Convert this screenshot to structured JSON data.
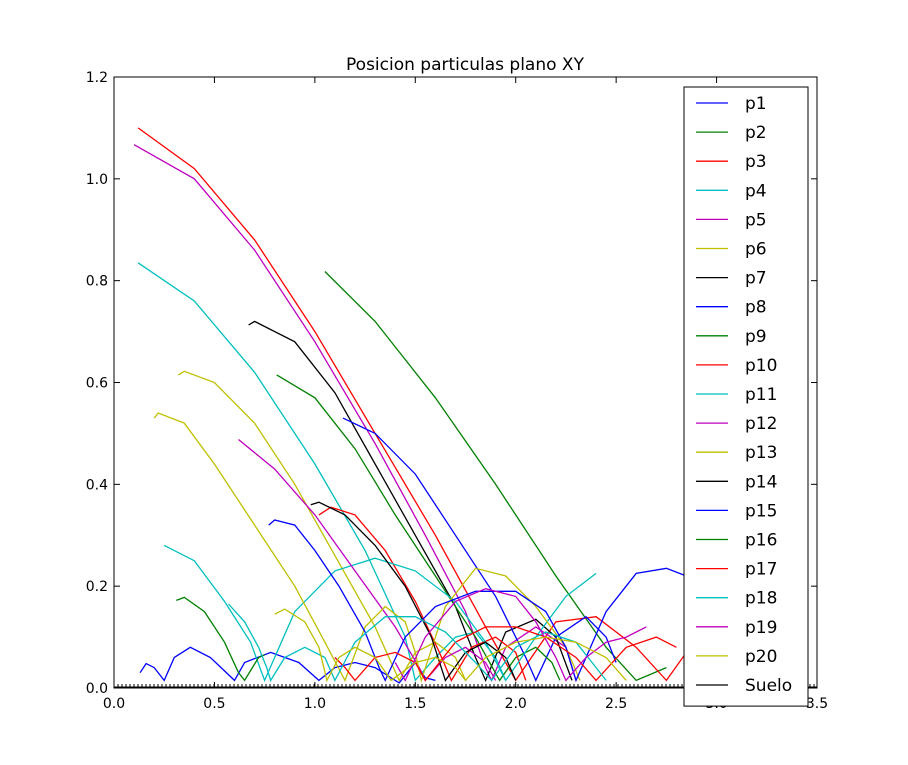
{
  "chart_data": {
    "type": "line",
    "title": "Posicion particulas plano XY",
    "xlabel": "",
    "ylabel": "",
    "xlim": [
      0.0,
      3.5
    ],
    "ylim": [
      0.0,
      1.2
    ],
    "xticks": [
      "0.0",
      "0.5",
      "1.0",
      "1.5",
      "2.0",
      "2.5",
      "3.0",
      "3.5"
    ],
    "yticks": [
      "0.0",
      "0.2",
      "0.4",
      "0.6",
      "0.8",
      "1.0",
      "1.2"
    ],
    "grid": false,
    "legend_position": "upper-right",
    "series": [
      {
        "name": "p1",
        "color": "#0000ff",
        "points": [
          [
            0.13,
            0.03
          ],
          [
            0.16,
            0.048
          ],
          [
            0.2,
            0.04
          ],
          [
            0.25,
            0.015
          ],
          [
            0.3,
            0.06
          ],
          [
            0.38,
            0.08
          ],
          [
            0.48,
            0.06
          ],
          [
            0.6,
            0.015
          ],
          [
            0.65,
            0.05
          ],
          [
            0.78,
            0.07
          ],
          [
            0.92,
            0.05
          ],
          [
            1.02,
            0.015
          ],
          [
            1.1,
            0.04
          ],
          [
            1.2,
            0.05
          ],
          [
            1.3,
            0.04
          ],
          [
            1.42,
            0.01
          ],
          [
            1.5,
            0.05
          ],
          [
            1.55,
            0.02
          ],
          [
            1.6,
            0.015
          ]
        ]
      },
      {
        "name": "p2",
        "color": "#008000",
        "points": [
          [
            1.05,
            0.818
          ],
          [
            1.3,
            0.72
          ],
          [
            1.6,
            0.57
          ],
          [
            1.9,
            0.4
          ],
          [
            2.2,
            0.22
          ],
          [
            2.45,
            0.08
          ],
          [
            2.6,
            0.015
          ],
          [
            2.75,
            0.04
          ]
        ]
      },
      {
        "name": "p3",
        "color": "#ff0000",
        "points": [
          [
            0.12,
            1.1
          ],
          [
            0.4,
            1.02
          ],
          [
            0.7,
            0.88
          ],
          [
            1.0,
            0.7
          ],
          [
            1.3,
            0.5
          ],
          [
            1.6,
            0.3
          ],
          [
            1.85,
            0.12
          ],
          [
            2.0,
            0.015
          ],
          [
            2.2,
            0.13
          ],
          [
            2.4,
            0.14
          ],
          [
            2.6,
            0.08
          ],
          [
            2.75,
            0.015
          ],
          [
            2.85,
            0.07
          ]
        ]
      },
      {
        "name": "p4",
        "color": "#00bfbf",
        "points": [
          [
            0.12,
            0.835
          ],
          [
            0.4,
            0.76
          ],
          [
            0.7,
            0.62
          ],
          [
            1.0,
            0.44
          ],
          [
            1.25,
            0.27
          ],
          [
            1.45,
            0.1
          ],
          [
            1.5,
            0.015
          ],
          [
            1.6,
            0.06
          ],
          [
            1.7,
            0.1
          ],
          [
            1.8,
            0.11
          ],
          [
            1.9,
            0.06
          ],
          [
            1.95,
            0.015
          ]
        ]
      },
      {
        "name": "p5",
        "color": "#bf00bf",
        "points": [
          [
            0.1,
            1.067
          ],
          [
            0.4,
            1.0
          ],
          [
            0.7,
            0.86
          ],
          [
            1.0,
            0.68
          ],
          [
            1.3,
            0.48
          ],
          [
            1.55,
            0.3
          ],
          [
            1.75,
            0.15
          ],
          [
            1.85,
            0.04
          ],
          [
            1.88,
            0.015
          ],
          [
            1.95,
            0.08
          ],
          [
            2.1,
            0.12
          ],
          [
            2.25,
            0.08
          ],
          [
            2.3,
            0.015
          ]
        ]
      },
      {
        "name": "p6",
        "color": "#bfbf00",
        "points": [
          [
            0.32,
            0.615
          ],
          [
            0.35,
            0.622
          ],
          [
            0.5,
            0.6
          ],
          [
            0.7,
            0.52
          ],
          [
            0.9,
            0.4
          ],
          [
            1.1,
            0.26
          ],
          [
            1.3,
            0.12
          ],
          [
            1.42,
            0.015
          ],
          [
            1.5,
            0.07
          ],
          [
            1.6,
            0.09
          ],
          [
            1.7,
            0.06
          ],
          [
            1.75,
            0.015
          ]
        ]
      },
      {
        "name": "p7",
        "color": "#000000",
        "points": [
          [
            0.67,
            0.713
          ],
          [
            0.7,
            0.72
          ],
          [
            0.9,
            0.68
          ],
          [
            1.1,
            0.58
          ],
          [
            1.3,
            0.44
          ],
          [
            1.5,
            0.3
          ],
          [
            1.7,
            0.16
          ],
          [
            1.8,
            0.06
          ],
          [
            1.85,
            0.015
          ],
          [
            1.95,
            0.11
          ],
          [
            2.1,
            0.135
          ],
          [
            2.2,
            0.1
          ],
          [
            2.28,
            0.015
          ]
        ]
      },
      {
        "name": "p8",
        "color": "#0000ff",
        "points": [
          [
            1.14,
            0.53
          ],
          [
            1.3,
            0.5
          ],
          [
            1.5,
            0.42
          ],
          [
            1.7,
            0.3
          ],
          [
            1.9,
            0.18
          ],
          [
            2.05,
            0.06
          ],
          [
            2.1,
            0.015
          ],
          [
            2.2,
            0.1
          ],
          [
            2.35,
            0.14
          ],
          [
            2.45,
            0.1
          ],
          [
            2.5,
            0.05
          ]
        ]
      },
      {
        "name": "p9",
        "color": "#008000",
        "points": [
          [
            0.81,
            0.615
          ],
          [
            1.0,
            0.57
          ],
          [
            1.2,
            0.47
          ],
          [
            1.4,
            0.34
          ],
          [
            1.6,
            0.22
          ],
          [
            1.8,
            0.1
          ],
          [
            1.92,
            0.015
          ],
          [
            2.0,
            0.06
          ],
          [
            2.1,
            0.08
          ],
          [
            2.18,
            0.05
          ],
          [
            2.22,
            0.015
          ]
        ]
      },
      {
        "name": "p10",
        "color": "#ff0000",
        "points": [
          [
            1.02,
            0.34
          ],
          [
            1.08,
            0.355
          ],
          [
            1.2,
            0.34
          ],
          [
            1.35,
            0.27
          ],
          [
            1.5,
            0.17
          ],
          [
            1.62,
            0.07
          ],
          [
            1.68,
            0.015
          ],
          [
            1.78,
            0.08
          ],
          [
            1.9,
            0.1
          ],
          [
            2.0,
            0.07
          ],
          [
            2.05,
            0.015
          ]
        ]
      },
      {
        "name": "p11",
        "color": "#00bfbf",
        "points": [
          [
            0.25,
            0.28
          ],
          [
            0.4,
            0.25
          ],
          [
            0.55,
            0.17
          ],
          [
            0.68,
            0.09
          ],
          [
            0.75,
            0.015
          ],
          [
            0.9,
            0.15
          ],
          [
            1.1,
            0.23
          ],
          [
            1.3,
            0.255
          ],
          [
            1.5,
            0.23
          ],
          [
            1.7,
            0.17
          ],
          [
            1.85,
            0.09
          ],
          [
            1.95,
            0.015
          ],
          [
            2.1,
            0.1
          ],
          [
            2.25,
            0.18
          ],
          [
            2.4,
            0.225
          ]
        ]
      },
      {
        "name": "p12",
        "color": "#bf00bf",
        "points": [
          [
            0.62,
            0.488
          ],
          [
            0.8,
            0.43
          ],
          [
            1.0,
            0.34
          ],
          [
            1.2,
            0.23
          ],
          [
            1.4,
            0.12
          ],
          [
            1.52,
            0.04
          ],
          [
            1.55,
            0.015
          ],
          [
            1.65,
            0.06
          ],
          [
            1.75,
            0.08
          ],
          [
            1.85,
            0.05
          ],
          [
            1.9,
            0.015
          ]
        ]
      },
      {
        "name": "p13",
        "color": "#bfbf00",
        "points": [
          [
            0.2,
            0.53
          ],
          [
            0.22,
            0.54
          ],
          [
            0.35,
            0.52
          ],
          [
            0.5,
            0.44
          ],
          [
            0.7,
            0.32
          ],
          [
            0.9,
            0.2
          ],
          [
            1.05,
            0.09
          ],
          [
            1.15,
            0.015
          ],
          [
            1.25,
            0.12
          ],
          [
            1.35,
            0.16
          ],
          [
            1.45,
            0.13
          ],
          [
            1.5,
            0.07
          ],
          [
            1.53,
            0.015
          ],
          [
            1.65,
            0.16
          ],
          [
            1.8,
            0.235
          ],
          [
            1.95,
            0.22
          ],
          [
            2.1,
            0.16
          ],
          [
            2.25,
            0.08
          ],
          [
            2.32,
            0.015
          ]
        ]
      },
      {
        "name": "p14",
        "color": "#000000",
        "points": [
          [
            0.98,
            0.36
          ],
          [
            1.02,
            0.365
          ],
          [
            1.15,
            0.34
          ],
          [
            1.3,
            0.28
          ],
          [
            1.45,
            0.2
          ],
          [
            1.58,
            0.1
          ],
          [
            1.65,
            0.015
          ],
          [
            1.75,
            0.07
          ],
          [
            1.85,
            0.09
          ],
          [
            1.95,
            0.06
          ],
          [
            2.0,
            0.015
          ]
        ]
      },
      {
        "name": "p15",
        "color": "#0000ff",
        "points": [
          [
            0.77,
            0.32
          ],
          [
            0.8,
            0.33
          ],
          [
            0.9,
            0.32
          ],
          [
            1.0,
            0.27
          ],
          [
            1.12,
            0.2
          ],
          [
            1.25,
            0.11
          ],
          [
            1.32,
            0.04
          ],
          [
            1.35,
            0.015
          ],
          [
            1.45,
            0.1
          ],
          [
            1.6,
            0.16
          ],
          [
            1.8,
            0.19
          ],
          [
            2.0,
            0.19
          ],
          [
            2.15,
            0.15
          ],
          [
            2.25,
            0.08
          ],
          [
            2.3,
            0.015
          ],
          [
            2.45,
            0.15
          ],
          [
            2.6,
            0.225
          ],
          [
            2.75,
            0.235
          ],
          [
            2.85,
            0.22
          ]
        ]
      },
      {
        "name": "p16",
        "color": "#008000",
        "points": [
          [
            0.31,
            0.172
          ],
          [
            0.35,
            0.178
          ],
          [
            0.45,
            0.15
          ],
          [
            0.55,
            0.09
          ],
          [
            0.62,
            0.03
          ],
          [
            0.65,
            0.015
          ],
          [
            0.72,
            0.06
          ],
          [
            0.75,
            0.065
          ]
        ]
      },
      {
        "name": "p17",
        "color": "#ff0000",
        "points": [
          [
            1.1,
            0.06
          ],
          [
            1.15,
            0.04
          ],
          [
            1.2,
            0.015
          ],
          [
            1.3,
            0.06
          ],
          [
            1.4,
            0.07
          ],
          [
            1.5,
            0.05
          ],
          [
            1.55,
            0.015
          ],
          [
            1.7,
            0.09
          ],
          [
            1.85,
            0.12
          ],
          [
            2.0,
            0.12
          ],
          [
            2.15,
            0.1
          ],
          [
            2.3,
            0.06
          ],
          [
            2.4,
            0.015
          ],
          [
            2.55,
            0.08
          ],
          [
            2.7,
            0.1
          ],
          [
            2.8,
            0.08
          ]
        ]
      },
      {
        "name": "p18",
        "color": "#00bfbf",
        "points": [
          [
            0.57,
            0.165
          ],
          [
            0.65,
            0.13
          ],
          [
            0.72,
            0.08
          ],
          [
            0.76,
            0.04
          ],
          [
            0.78,
            0.015
          ],
          [
            0.85,
            0.06
          ],
          [
            0.95,
            0.08
          ],
          [
            1.05,
            0.06
          ],
          [
            1.1,
            0.015
          ],
          [
            1.2,
            0.09
          ],
          [
            1.35,
            0.14
          ],
          [
            1.5,
            0.14
          ],
          [
            1.65,
            0.11
          ],
          [
            1.8,
            0.05
          ],
          [
            1.88,
            0.015
          ],
          [
            2.0,
            0.08
          ],
          [
            2.15,
            0.11
          ],
          [
            2.3,
            0.09
          ],
          [
            2.4,
            0.04
          ],
          [
            2.45,
            0.015
          ]
        ]
      },
      {
        "name": "p19",
        "color": "#bf00bf",
        "points": [
          [
            1.4,
            0.05
          ],
          [
            1.45,
            0.015
          ],
          [
            1.55,
            0.1
          ],
          [
            1.7,
            0.17
          ],
          [
            1.85,
            0.195
          ],
          [
            2.0,
            0.18
          ],
          [
            2.1,
            0.13
          ],
          [
            2.2,
            0.06
          ],
          [
            2.25,
            0.015
          ],
          [
            2.35,
            0.06
          ],
          [
            2.45,
            0.09
          ],
          [
            2.55,
            0.1
          ],
          [
            2.65,
            0.12
          ]
        ]
      },
      {
        "name": "p20",
        "color": "#bfbf00",
        "points": [
          [
            0.8,
            0.145
          ],
          [
            0.85,
            0.155
          ],
          [
            0.95,
            0.13
          ],
          [
            1.02,
            0.08
          ],
          [
            1.06,
            0.015
          ],
          [
            1.12,
            0.06
          ],
          [
            1.2,
            0.08
          ],
          [
            1.3,
            0.06
          ],
          [
            1.38,
            0.015
          ],
          [
            1.5,
            0.05
          ],
          [
            1.6,
            0.06
          ],
          [
            1.7,
            0.04
          ],
          [
            1.75,
            0.015
          ],
          [
            1.85,
            0.06
          ],
          [
            2.0,
            0.09
          ],
          [
            2.15,
            0.1
          ],
          [
            2.3,
            0.09
          ],
          [
            2.45,
            0.06
          ],
          [
            2.55,
            0.015
          ]
        ]
      },
      {
        "name": "Suelo",
        "color": "#000000",
        "points": [
          [
            0.0,
            0.0
          ],
          [
            3.5,
            0.0
          ]
        ]
      }
    ]
  }
}
